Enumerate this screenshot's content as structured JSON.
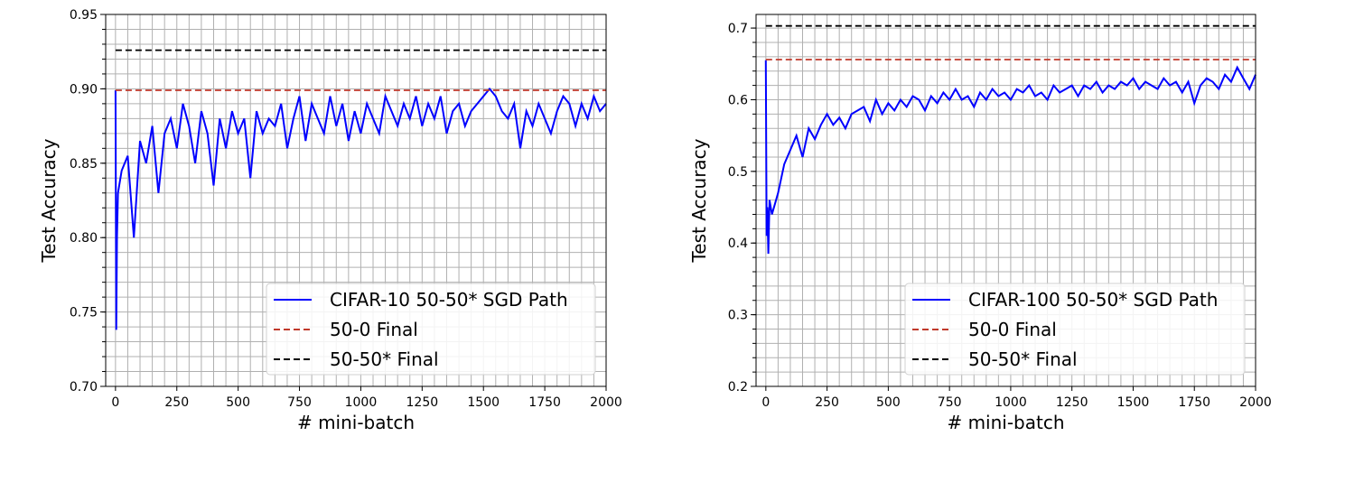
{
  "chart_data": [
    {
      "type": "line",
      "xlabel": "# mini-batch",
      "ylabel": "Test Accuracy",
      "xlim": [
        -40,
        2000
      ],
      "ylim": [
        0.7,
        0.95
      ],
      "xticks": [
        "0",
        "250",
        "500",
        "750",
        "1000",
        "1250",
        "1500",
        "1750",
        "2000"
      ],
      "xtick_values": [
        0,
        250,
        500,
        750,
        1000,
        1250,
        1500,
        1750,
        2000
      ],
      "yticks": [
        "0.70",
        "0.75",
        "0.80",
        "0.85",
        "0.90",
        "0.95"
      ],
      "ytick_values": [
        0.7,
        0.75,
        0.8,
        0.85,
        0.9,
        0.95
      ],
      "grid": "major and minor",
      "minor_x_step": 50,
      "minor_y_step": 0.01,
      "legend_position": "lower-right",
      "series": [
        {
          "name": "CIFAR-10 50-50* SGD Path",
          "style": "solid",
          "color": "#0000ff",
          "x": [
            0,
            3,
            6,
            10,
            25,
            50,
            75,
            100,
            125,
            150,
            175,
            200,
            225,
            250,
            275,
            300,
            325,
            350,
            375,
            400,
            425,
            450,
            475,
            500,
            525,
            550,
            575,
            600,
            625,
            650,
            675,
            700,
            725,
            750,
            775,
            800,
            825,
            850,
            875,
            900,
            925,
            950,
            975,
            1000,
            1025,
            1050,
            1075,
            1100,
            1125,
            1150,
            1175,
            1200,
            1225,
            1250,
            1275,
            1300,
            1325,
            1350,
            1375,
            1400,
            1425,
            1450,
            1475,
            1500,
            1525,
            1550,
            1575,
            1600,
            1625,
            1650,
            1675,
            1700,
            1725,
            1750,
            1775,
            1800,
            1825,
            1850,
            1875,
            1900,
            1925,
            1950,
            1975,
            2000
          ],
          "y": [
            0.899,
            0.738,
            0.8,
            0.83,
            0.845,
            0.855,
            0.8,
            0.865,
            0.85,
            0.875,
            0.83,
            0.87,
            0.88,
            0.86,
            0.89,
            0.875,
            0.85,
            0.885,
            0.87,
            0.835,
            0.88,
            0.86,
            0.885,
            0.87,
            0.88,
            0.84,
            0.885,
            0.87,
            0.88,
            0.875,
            0.89,
            0.86,
            0.88,
            0.895,
            0.865,
            0.89,
            0.88,
            0.87,
            0.895,
            0.875,
            0.89,
            0.865,
            0.885,
            0.87,
            0.89,
            0.88,
            0.87,
            0.895,
            0.885,
            0.875,
            0.89,
            0.88,
            0.895,
            0.875,
            0.89,
            0.88,
            0.895,
            0.87,
            0.885,
            0.89,
            0.875,
            0.885,
            0.89,
            0.895,
            0.9,
            0.895,
            0.885,
            0.88,
            0.89,
            0.86,
            0.885,
            0.875,
            0.89,
            0.88,
            0.87,
            0.885,
            0.895,
            0.89,
            0.875,
            0.89,
            0.88,
            0.895,
            0.885,
            0.89
          ]
        },
        {
          "name": "50-0 Final",
          "style": "dashed",
          "color": "#c0392b",
          "x": [
            0,
            2000
          ],
          "y": [
            0.899,
            0.899
          ]
        },
        {
          "name": "50-50* Final",
          "style": "dashed",
          "color": "#000000",
          "x": [
            0,
            2000
          ],
          "y": [
            0.926,
            0.926
          ]
        }
      ]
    },
    {
      "type": "line",
      "xlabel": "# mini-batch",
      "ylabel": "Test Accuracy",
      "xlim": [
        -40,
        2000
      ],
      "ylim": [
        0.2,
        0.719
      ],
      "xticks": [
        "0",
        "250",
        "500",
        "750",
        "1000",
        "1250",
        "1500",
        "1750",
        "2000"
      ],
      "xtick_values": [
        0,
        250,
        500,
        750,
        1000,
        1250,
        1500,
        1750,
        2000
      ],
      "yticks": [
        "0.2",
        "0.3",
        "0.4",
        "0.5",
        "0.6",
        "0.7"
      ],
      "ytick_values": [
        0.2,
        0.3,
        0.4,
        0.5,
        0.6,
        0.7
      ],
      "grid": "major and minor",
      "minor_x_step": 50,
      "minor_y_step": 0.02,
      "legend_position": "lower-right",
      "series": [
        {
          "name": "CIFAR-100 50-50* SGD Path",
          "style": "solid",
          "color": "#0000ff",
          "x": [
            0,
            3,
            6,
            10,
            15,
            25,
            50,
            75,
            100,
            125,
            150,
            175,
            200,
            225,
            250,
            275,
            300,
            325,
            350,
            375,
            400,
            425,
            450,
            475,
            500,
            525,
            550,
            575,
            600,
            625,
            650,
            675,
            700,
            725,
            750,
            775,
            800,
            825,
            850,
            875,
            900,
            925,
            950,
            975,
            1000,
            1025,
            1050,
            1075,
            1100,
            1125,
            1150,
            1175,
            1200,
            1225,
            1250,
            1275,
            1300,
            1325,
            1350,
            1375,
            1400,
            1425,
            1450,
            1475,
            1500,
            1525,
            1550,
            1575,
            1600,
            1625,
            1650,
            1675,
            1700,
            1725,
            1750,
            1775,
            1800,
            1825,
            1850,
            1875,
            1900,
            1925,
            1950,
            1975,
            2000
          ],
          "y": [
            0.655,
            0.41,
            0.45,
            0.385,
            0.46,
            0.44,
            0.47,
            0.51,
            0.53,
            0.55,
            0.52,
            0.56,
            0.545,
            0.565,
            0.58,
            0.565,
            0.575,
            0.56,
            0.58,
            0.585,
            0.59,
            0.57,
            0.6,
            0.58,
            0.595,
            0.585,
            0.6,
            0.59,
            0.605,
            0.6,
            0.585,
            0.605,
            0.595,
            0.61,
            0.6,
            0.615,
            0.6,
            0.605,
            0.59,
            0.61,
            0.6,
            0.615,
            0.605,
            0.61,
            0.6,
            0.615,
            0.61,
            0.62,
            0.605,
            0.61,
            0.6,
            0.62,
            0.61,
            0.615,
            0.62,
            0.605,
            0.62,
            0.615,
            0.625,
            0.61,
            0.62,
            0.615,
            0.625,
            0.62,
            0.63,
            0.615,
            0.625,
            0.62,
            0.615,
            0.63,
            0.62,
            0.625,
            0.61,
            0.625,
            0.595,
            0.62,
            0.63,
            0.625,
            0.615,
            0.635,
            0.625,
            0.645,
            0.63,
            0.615,
            0.635
          ]
        },
        {
          "name": "50-0 Final",
          "style": "dashed",
          "color": "#c0392b",
          "x": [
            0,
            2000
          ],
          "y": [
            0.656,
            0.656
          ]
        },
        {
          "name": "50-50* Final",
          "style": "dashed",
          "color": "#000000",
          "x": [
            0,
            2000
          ],
          "y": [
            0.703,
            0.703
          ]
        }
      ]
    }
  ]
}
